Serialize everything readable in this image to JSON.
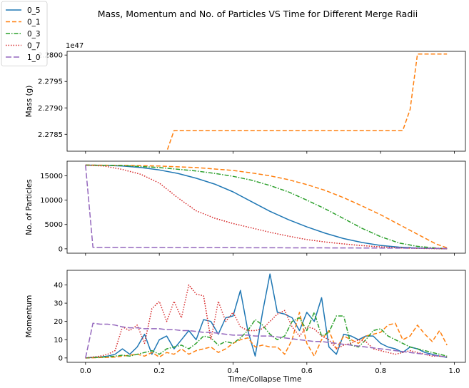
{
  "figure": {
    "title": "Mass, Momentum and No. of Particles VS Time for Different Merge Radii",
    "xlabel": "Time/Collapse Time"
  },
  "legend": {
    "placement": "top-left",
    "entries": [
      {
        "label": "0_5",
        "color": "#1f77b4",
        "dash": "solid"
      },
      {
        "label": "0_1",
        "color": "#ff7f0e",
        "dash": "dashed"
      },
      {
        "label": "0_3",
        "color": "#2ca02c",
        "dash": "dashdot"
      },
      {
        "label": "0_7",
        "color": "#d62728",
        "dash": "dotted"
      },
      {
        "label": "1_0",
        "color": "#9467bd",
        "dash": "long-dash"
      }
    ]
  },
  "chart_data": [
    {
      "type": "line",
      "ylabel": "Mass (g)",
      "offset_text": "1e47",
      "xlim": [
        -0.05,
        1.03
      ],
      "ylim": [
        2.27818,
        2.28007
      ],
      "x_ticks": [
        0.0,
        0.2,
        0.4,
        0.6,
        0.8,
        1.0
      ],
      "show_x_tick_labels": false,
      "y_ticks": [
        2.2785,
        2.279,
        2.2795,
        2.28
      ],
      "y_tick_labels": [
        "2.2785",
        "2.2790",
        "2.2795",
        "2.2800"
      ],
      "grid": false,
      "series": [
        {
          "name": "0_5",
          "x": [
            0.0,
            0.98
          ],
          "y": [
            2.27817,
            2.27817
          ]
        },
        {
          "name": "0_1",
          "x": [
            0.0,
            0.22,
            0.24,
            0.86,
            0.88,
            0.9,
            0.92,
            0.98
          ],
          "y": [
            2.27817,
            2.27817,
            2.27857,
            2.27857,
            2.27897,
            2.28002,
            2.28002,
            2.28002
          ]
        },
        {
          "name": "0_3",
          "x": [
            0.0,
            0.98
          ],
          "y": [
            2.27817,
            2.27817
          ]
        },
        {
          "name": "0_7",
          "x": [
            0.0,
            0.98
          ],
          "y": [
            2.27817,
            2.27817
          ]
        },
        {
          "name": "1_0",
          "x": [
            0.0,
            0.98
          ],
          "y": [
            2.27817,
            2.27817
          ]
        }
      ]
    },
    {
      "type": "line",
      "ylabel": "No. of Particles",
      "xlim": [
        -0.05,
        1.03
      ],
      "ylim": [
        -900,
        18000
      ],
      "x_ticks": [
        0.0,
        0.2,
        0.4,
        0.6,
        0.8,
        1.0
      ],
      "show_x_tick_labels": false,
      "y_ticks": [
        0,
        5000,
        10000,
        15000
      ],
      "y_tick_labels": [
        "0",
        "5000",
        "10000",
        "15000"
      ],
      "grid": false,
      "series": [
        {
          "name": "0_5",
          "x": [
            0.0,
            0.05,
            0.1,
            0.15,
            0.2,
            0.25,
            0.3,
            0.35,
            0.4,
            0.45,
            0.5,
            0.55,
            0.6,
            0.65,
            0.7,
            0.75,
            0.8,
            0.85,
            0.9,
            0.95,
            0.98
          ],
          "y": [
            17200,
            17150,
            17000,
            16700,
            16200,
            15500,
            14500,
            13300,
            11700,
            9700,
            7700,
            6000,
            4500,
            3200,
            2100,
            1300,
            700,
            350,
            150,
            60,
            20
          ]
        },
        {
          "name": "0_1",
          "x": [
            0.0,
            0.1,
            0.2,
            0.3,
            0.4,
            0.45,
            0.5,
            0.55,
            0.6,
            0.65,
            0.7,
            0.75,
            0.8,
            0.85,
            0.9,
            0.95,
            0.98
          ],
          "y": [
            17200,
            17150,
            17000,
            16700,
            16100,
            15600,
            15000,
            14200,
            13200,
            12000,
            10500,
            8800,
            7000,
            5000,
            3000,
            1000,
            200
          ]
        },
        {
          "name": "0_3",
          "x": [
            0.0,
            0.1,
            0.2,
            0.3,
            0.35,
            0.4,
            0.45,
            0.5,
            0.55,
            0.6,
            0.65,
            0.7,
            0.75,
            0.8,
            0.85,
            0.9,
            0.95,
            0.98
          ],
          "y": [
            17200,
            17100,
            16700,
            16000,
            15500,
            14900,
            14100,
            13000,
            11700,
            10000,
            8200,
            6200,
            4200,
            2500,
            1200,
            500,
            150,
            50
          ]
        },
        {
          "name": "0_7",
          "x": [
            0.0,
            0.05,
            0.1,
            0.15,
            0.2,
            0.25,
            0.3,
            0.35,
            0.4,
            0.45,
            0.5,
            0.55,
            0.6,
            0.65,
            0.7,
            0.75,
            0.8,
            0.85,
            0.9,
            0.95,
            0.98
          ],
          "y": [
            17200,
            17000,
            16300,
            15300,
            13500,
            10500,
            7800,
            6300,
            5200,
            4300,
            3400,
            2600,
            1900,
            1400,
            1000,
            650,
            400,
            200,
            100,
            40,
            10
          ]
        },
        {
          "name": "1_0",
          "x": [
            0.0,
            0.02,
            0.1,
            0.3,
            0.5,
            0.7,
            0.9,
            0.98
          ],
          "y": [
            17200,
            300,
            280,
            250,
            220,
            180,
            120,
            80
          ]
        }
      ]
    },
    {
      "type": "line",
      "ylabel": "Momentum",
      "xlim": [
        -0.05,
        1.03
      ],
      "ylim": [
        -2.4,
        48
      ],
      "x_ticks": [
        0.0,
        0.2,
        0.4,
        0.6,
        0.8,
        1.0
      ],
      "show_x_tick_labels": true,
      "x_tick_labels": [
        "0.0",
        "0.2",
        "0.4",
        "0.6",
        "0.8",
        "1.0"
      ],
      "y_ticks": [
        0,
        10,
        20,
        30,
        40
      ],
      "y_tick_labels": [
        "0",
        "10",
        "20",
        "30",
        "40"
      ],
      "grid": false,
      "series": [
        {
          "name": "0_5",
          "x": [
            0.0,
            0.02,
            0.04,
            0.06,
            0.08,
            0.1,
            0.12,
            0.14,
            0.16,
            0.18,
            0.2,
            0.22,
            0.24,
            0.26,
            0.28,
            0.3,
            0.32,
            0.34,
            0.36,
            0.38,
            0.4,
            0.42,
            0.44,
            0.46,
            0.48,
            0.5,
            0.52,
            0.54,
            0.56,
            0.58,
            0.6,
            0.62,
            0.64,
            0.66,
            0.68,
            0.7,
            0.72,
            0.74,
            0.76,
            0.78,
            0.8,
            0.82,
            0.84,
            0.86,
            0.88,
            0.9,
            0.92,
            0.94,
            0.96,
            0.98
          ],
          "y": [
            0,
            0.3,
            0.5,
            1,
            2,
            5,
            2,
            6,
            13,
            2,
            10,
            12,
            5,
            10,
            15,
            10,
            21,
            20,
            13,
            22,
            23,
            37,
            15,
            1,
            25,
            46,
            25,
            24,
            22,
            15,
            25,
            20,
            33,
            6,
            2,
            13,
            12,
            10,
            12,
            12,
            8,
            6,
            5,
            3,
            6,
            5,
            3,
            2,
            1,
            0.3
          ]
        },
        {
          "name": "0_1",
          "x": [
            0.0,
            0.02,
            0.04,
            0.06,
            0.08,
            0.1,
            0.12,
            0.14,
            0.16,
            0.18,
            0.2,
            0.22,
            0.24,
            0.26,
            0.28,
            0.3,
            0.32,
            0.34,
            0.36,
            0.38,
            0.4,
            0.42,
            0.44,
            0.46,
            0.48,
            0.5,
            0.52,
            0.54,
            0.56,
            0.58,
            0.6,
            0.62,
            0.64,
            0.66,
            0.68,
            0.7,
            0.72,
            0.74,
            0.76,
            0.78,
            0.8,
            0.82,
            0.84,
            0.86,
            0.88,
            0.9,
            0.92,
            0.94,
            0.96,
            0.98
          ],
          "y": [
            0,
            0.1,
            0.2,
            0.3,
            0.5,
            1,
            1.5,
            2,
            1,
            3,
            0.5,
            3,
            2,
            5,
            2,
            4,
            5,
            6,
            3,
            5,
            8,
            10,
            11,
            6,
            7,
            6,
            6,
            2,
            10,
            25,
            8,
            1,
            10,
            15,
            5,
            12,
            10,
            8,
            12,
            13,
            14,
            18,
            19,
            10,
            12,
            18,
            13,
            9,
            15,
            7
          ]
        },
        {
          "name": "0_3",
          "x": [
            0.0,
            0.02,
            0.04,
            0.06,
            0.08,
            0.1,
            0.12,
            0.14,
            0.16,
            0.18,
            0.2,
            0.22,
            0.24,
            0.26,
            0.28,
            0.3,
            0.32,
            0.34,
            0.36,
            0.38,
            0.4,
            0.42,
            0.44,
            0.46,
            0.48,
            0.5,
            0.52,
            0.54,
            0.56,
            0.58,
            0.6,
            0.62,
            0.64,
            0.66,
            0.68,
            0.7,
            0.72,
            0.74,
            0.76,
            0.78,
            0.8,
            0.82,
            0.84,
            0.86,
            0.88,
            0.9,
            0.92,
            0.94,
            0.96,
            0.98
          ],
          "y": [
            0,
            0.2,
            0.4,
            0.6,
            1,
            1.5,
            1,
            2,
            3,
            4,
            2,
            5,
            6,
            7,
            5,
            8,
            12,
            11,
            7,
            9,
            8,
            11,
            15,
            21,
            18,
            13,
            10,
            12,
            20,
            22,
            15,
            25,
            12,
            14,
            23,
            23,
            7,
            6,
            10,
            15,
            16,
            12,
            10,
            8,
            6,
            5,
            4,
            3,
            2,
            1
          ]
        },
        {
          "name": "0_7",
          "x": [
            0.0,
            0.02,
            0.04,
            0.06,
            0.08,
            0.1,
            0.12,
            0.14,
            0.16,
            0.18,
            0.2,
            0.22,
            0.24,
            0.26,
            0.28,
            0.3,
            0.32,
            0.34,
            0.36,
            0.38,
            0.4,
            0.42,
            0.44,
            0.46,
            0.48,
            0.5,
            0.52,
            0.54,
            0.56,
            0.58,
            0.6,
            0.62,
            0.64,
            0.66,
            0.68,
            0.7,
            0.72,
            0.74,
            0.76,
            0.78,
            0.8,
            0.82,
            0.84,
            0.86,
            0.88,
            0.9,
            0.92,
            0.94,
            0.96,
            0.98
          ],
          "y": [
            0,
            0.5,
            1,
            2,
            4,
            17,
            15,
            18,
            8,
            27,
            31,
            20,
            31,
            22,
            40,
            35,
            34,
            10,
            31,
            20,
            25,
            17,
            15,
            15,
            16,
            20,
            24,
            26,
            17,
            12,
            17,
            16,
            12,
            10,
            5,
            7,
            8,
            10,
            9,
            5,
            4,
            3,
            2,
            3,
            4,
            3,
            2,
            1,
            1,
            0.5
          ]
        },
        {
          "name": "1_0",
          "x": [
            0.0,
            0.02,
            0.04,
            0.06,
            0.08,
            0.1,
            0.12,
            0.14,
            0.16,
            0.18,
            0.2,
            0.22,
            0.24,
            0.26,
            0.28,
            0.3,
            0.32,
            0.34,
            0.36,
            0.38,
            0.4,
            0.42,
            0.44,
            0.46,
            0.48,
            0.5,
            0.52,
            0.54,
            0.56,
            0.58,
            0.6,
            0.62,
            0.64,
            0.66,
            0.68,
            0.7,
            0.72,
            0.74,
            0.76,
            0.78,
            0.8,
            0.82,
            0.84,
            0.86,
            0.88,
            0.9,
            0.92,
            0.94,
            0.96,
            0.98
          ],
          "y": [
            0,
            19,
            18.5,
            18.5,
            18,
            17,
            16.5,
            16.5,
            16,
            16,
            16,
            15.5,
            15.5,
            15,
            15,
            14.5,
            14,
            14,
            13.5,
            13,
            12.5,
            12.5,
            12.5,
            12,
            12,
            12,
            11.5,
            11,
            10.5,
            10,
            9.5,
            9,
            9,
            8.5,
            8,
            7.5,
            7,
            6.5,
            6,
            5.5,
            5,
            4.5,
            4,
            3.5,
            3,
            2.5,
            2,
            1.5,
            1,
            0.5
          ]
        }
      ]
    }
  ]
}
